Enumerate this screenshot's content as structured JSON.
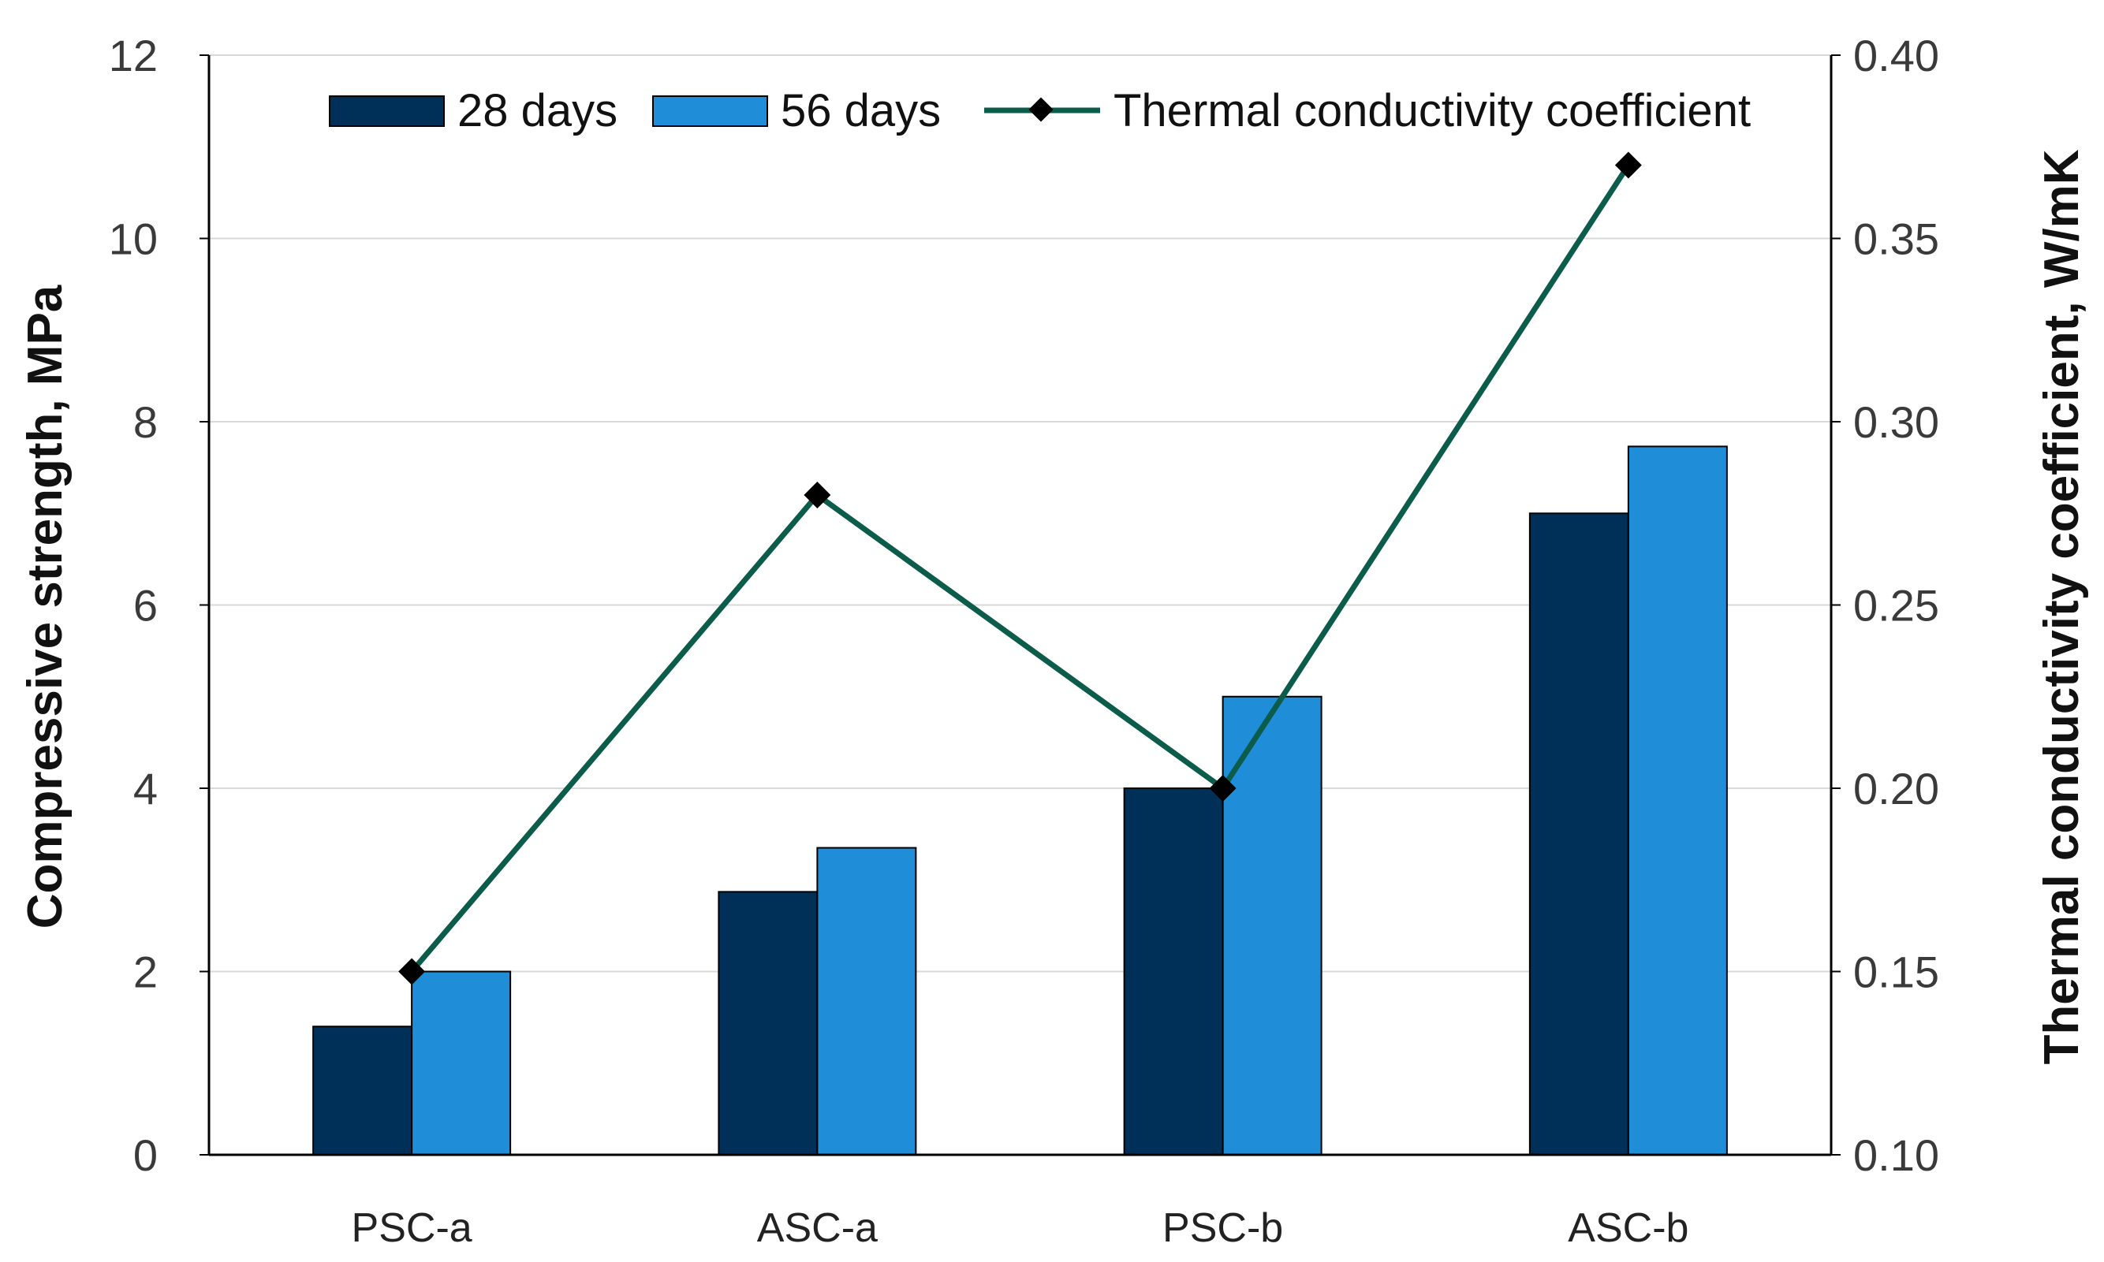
{
  "chart_data": {
    "type": "bar",
    "categories": [
      "PSC-a",
      "ASC-a",
      "PSC-b",
      "ASC-b"
    ],
    "series": [
      {
        "name": "28 days",
        "kind": "bar",
        "axis": "left",
        "color": "#003057",
        "values": [
          1.4,
          2.87,
          4.0,
          7.0
        ]
      },
      {
        "name": "56 days",
        "kind": "bar",
        "axis": "left",
        "color": "#1F8DD8",
        "values": [
          2.0,
          3.35,
          5.0,
          7.73
        ]
      },
      {
        "name": "Thermal conductivity coefficient",
        "kind": "line",
        "axis": "right",
        "color": "#0B5C4A",
        "marker": "diamond",
        "values": [
          0.15,
          0.28,
          0.2,
          0.37
        ]
      }
    ],
    "ylabel": "Compressive strength, MPa",
    "y2label": "Thermal conductivity coefficient, W/mK",
    "xlabel": "",
    "ylim": [
      0,
      12
    ],
    "y2lim": [
      0.1,
      0.4
    ],
    "yticks": [
      "0",
      "2",
      "4",
      "6",
      "8",
      "10",
      "12"
    ],
    "y2ticks": [
      "0.10",
      "0.15",
      "0.20",
      "0.25",
      "0.30",
      "0.35",
      "0.40"
    ],
    "grid": true,
    "legend_position": "top"
  }
}
